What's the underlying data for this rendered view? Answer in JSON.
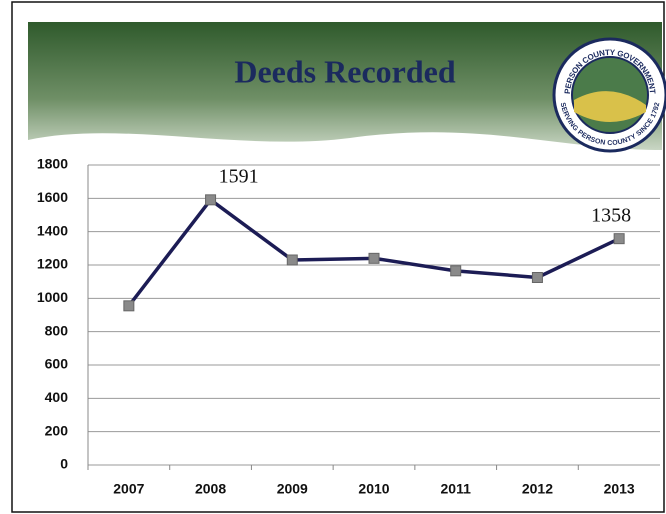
{
  "chart_data": {
    "type": "line",
    "title": "Deeds Recorded",
    "logo": {
      "top_text": "PERSON COUNTY GOVERNMENT",
      "bottom_text": "SERVING PERSON COUNTY SINCE 1792"
    },
    "categories": [
      "2007",
      "2008",
      "2009",
      "2010",
      "2011",
      "2012",
      "2013"
    ],
    "values": [
      955,
      1591,
      1230,
      1240,
      1165,
      1125,
      1358
    ],
    "value_labels": [
      null,
      "1591",
      null,
      null,
      null,
      null,
      "1358"
    ],
    "color": "#1c1c55",
    "marker_color": "#8a8a8a",
    "ylim": [
      0,
      1800
    ],
    "yticks": [
      0,
      200,
      400,
      600,
      800,
      1000,
      1200,
      1400,
      1600,
      1800
    ],
    "grid": true
  }
}
